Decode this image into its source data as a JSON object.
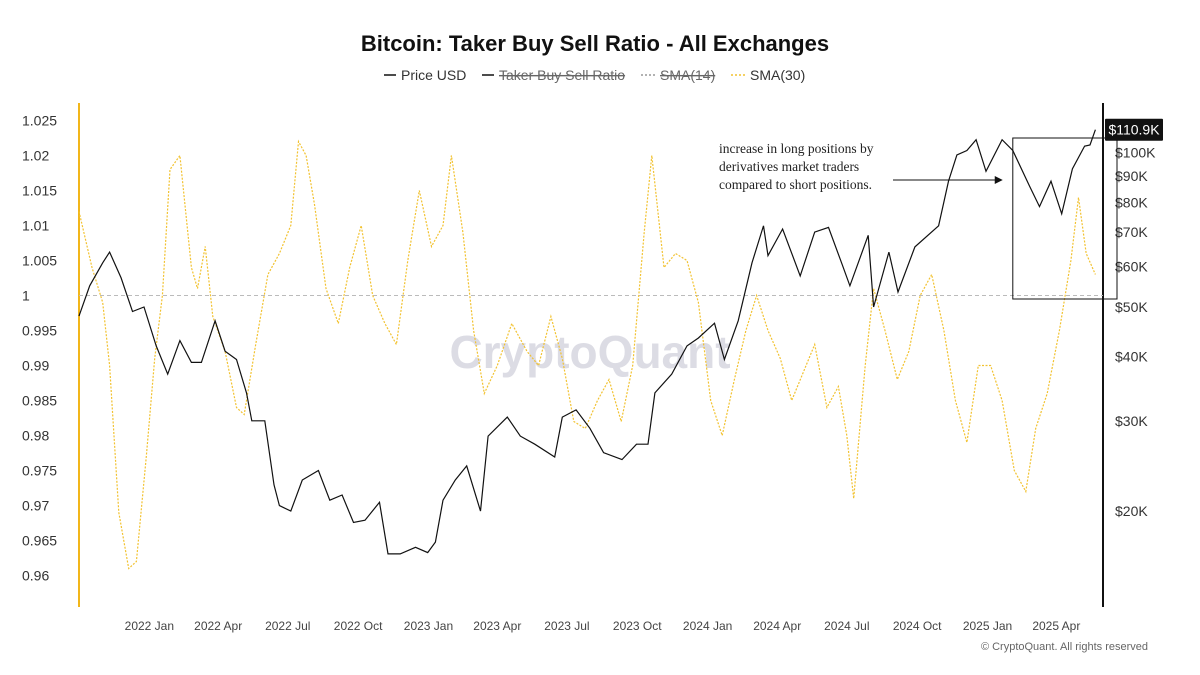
{
  "colors": {
    "price": "#111111",
    "sma30": "#f2c230",
    "left_axis": "#f2b61a",
    "right_axis": "#111111",
    "baseline": "#bbbbbb"
  },
  "watermark": "CryptoQuant",
  "copyright": "© CryptoQuant. All rights reserved",
  "chart_data": {
    "type": "line",
    "title": "Bitcoin: Taker Buy Sell Ratio - All Exchanges",
    "legend": [
      {
        "label": "Price USD",
        "active": true,
        "style": "solid-black"
      },
      {
        "label": "Taker Buy Sell Ratio",
        "active": false,
        "style": "solid-black"
      },
      {
        "label": "SMA(14)",
        "active": false,
        "style": "dotted-gray"
      },
      {
        "label": "SMA(30)",
        "active": true,
        "style": "dotted-yellow"
      }
    ],
    "x_axis": {
      "range": [
        "2021-10-01",
        "2025-06-01"
      ],
      "ticks": [
        {
          "label": "2022 Jan",
          "date": "2022-01-01"
        },
        {
          "label": "2022 Apr",
          "date": "2022-04-01"
        },
        {
          "label": "2022 Jul",
          "date": "2022-07-01"
        },
        {
          "label": "2022 Oct",
          "date": "2022-10-01"
        },
        {
          "label": "2023 Jan",
          "date": "2023-01-01"
        },
        {
          "label": "2023 Apr",
          "date": "2023-04-01"
        },
        {
          "label": "2023 Jul",
          "date": "2023-07-01"
        },
        {
          "label": "2023 Oct",
          "date": "2023-10-01"
        },
        {
          "label": "2024 Jan",
          "date": "2024-01-01"
        },
        {
          "label": "2024 Apr",
          "date": "2024-04-01"
        },
        {
          "label": "2024 Jul",
          "date": "2024-07-01"
        },
        {
          "label": "2024 Oct",
          "date": "2024-10-01"
        },
        {
          "label": "2025 Jan",
          "date": "2025-01-01"
        },
        {
          "label": "2025 Apr",
          "date": "2025-04-01"
        }
      ]
    },
    "y_left": {
      "range": [
        0.9555,
        1.0275
      ],
      "ticks": [
        "1.025",
        "1.02",
        "1.015",
        "1.01",
        "1.005",
        "1",
        "0.995",
        "0.99",
        "0.985",
        "0.98",
        "0.975",
        "0.97",
        "0.965",
        "0.96"
      ],
      "baseline": 1
    },
    "y_right": {
      "scale": "log",
      "range": [
        13000,
        125000
      ],
      "ticks": [
        {
          "label": "$100K",
          "value": 100000
        },
        {
          "label": "$90K",
          "value": 90000
        },
        {
          "label": "$80K",
          "value": 80000
        },
        {
          "label": "$70K",
          "value": 70000
        },
        {
          "label": "$60K",
          "value": 60000
        },
        {
          "label": "$50K",
          "value": 50000
        },
        {
          "label": "$40K",
          "value": 40000
        },
        {
          "label": "$30K",
          "value": 30000
        },
        {
          "label": "$20K",
          "value": 20000
        }
      ],
      "current_price_label": "$110.9K",
      "current_price_value": 110900
    },
    "series": [
      {
        "name": "Price USD",
        "axis": "right",
        "points": [
          [
            "2021-10-01",
            48000
          ],
          [
            "2021-10-15",
            55000
          ],
          [
            "2021-11-01",
            61000
          ],
          [
            "2021-11-10",
            64000
          ],
          [
            "2021-11-25",
            57000
          ],
          [
            "2021-12-10",
            49000
          ],
          [
            "2021-12-25",
            50000
          ],
          [
            "2022-01-10",
            42000
          ],
          [
            "2022-01-25",
            37000
          ],
          [
            "2022-02-10",
            43000
          ],
          [
            "2022-02-25",
            39000
          ],
          [
            "2022-03-10",
            39000
          ],
          [
            "2022-03-28",
            47000
          ],
          [
            "2022-04-10",
            41000
          ],
          [
            "2022-04-25",
            39500
          ],
          [
            "2022-05-08",
            34000
          ],
          [
            "2022-05-15",
            30000
          ],
          [
            "2022-06-01",
            30000
          ],
          [
            "2022-06-13",
            22500
          ],
          [
            "2022-06-20",
            20500
          ],
          [
            "2022-07-05",
            20000
          ],
          [
            "2022-07-20",
            23000
          ],
          [
            "2022-08-10",
            24000
          ],
          [
            "2022-08-25",
            21000
          ],
          [
            "2022-09-10",
            21500
          ],
          [
            "2022-09-25",
            19000
          ],
          [
            "2022-10-10",
            19200
          ],
          [
            "2022-10-29",
            20800
          ],
          [
            "2022-11-09",
            16500
          ],
          [
            "2022-11-25",
            16500
          ],
          [
            "2022-12-15",
            17000
          ],
          [
            "2022-12-31",
            16600
          ],
          [
            "2023-01-10",
            17400
          ],
          [
            "2023-01-20",
            21000
          ],
          [
            "2023-02-05",
            23000
          ],
          [
            "2023-02-20",
            24500
          ],
          [
            "2023-03-10",
            20000
          ],
          [
            "2023-03-20",
            28000
          ],
          [
            "2023-04-14",
            30500
          ],
          [
            "2023-05-01",
            28000
          ],
          [
            "2023-05-20",
            27000
          ],
          [
            "2023-06-15",
            25500
          ],
          [
            "2023-06-25",
            30500
          ],
          [
            "2023-07-13",
            31500
          ],
          [
            "2023-07-31",
            29000
          ],
          [
            "2023-08-18",
            26000
          ],
          [
            "2023-09-11",
            25200
          ],
          [
            "2023-09-30",
            27000
          ],
          [
            "2023-10-15",
            27000
          ],
          [
            "2023-10-24",
            34000
          ],
          [
            "2023-11-15",
            37000
          ],
          [
            "2023-12-05",
            42000
          ],
          [
            "2023-12-20",
            43500
          ],
          [
            "2024-01-10",
            46500
          ],
          [
            "2024-01-23",
            39500
          ],
          [
            "2024-02-10",
            47000
          ],
          [
            "2024-02-28",
            61000
          ],
          [
            "2024-03-14",
            72000
          ],
          [
            "2024-03-20",
            63000
          ],
          [
            "2024-04-08",
            71000
          ],
          [
            "2024-05-01",
            57500
          ],
          [
            "2024-05-20",
            70000
          ],
          [
            "2024-06-07",
            71500
          ],
          [
            "2024-06-25",
            60500
          ],
          [
            "2024-07-05",
            55000
          ],
          [
            "2024-07-29",
            69000
          ],
          [
            "2024-08-05",
            50000
          ],
          [
            "2024-08-25",
            64000
          ],
          [
            "2024-09-06",
            53500
          ],
          [
            "2024-09-28",
            65500
          ],
          [
            "2024-10-29",
            72000
          ],
          [
            "2024-11-11",
            88000
          ],
          [
            "2024-11-22",
            99000
          ],
          [
            "2024-12-05",
            101000
          ],
          [
            "2024-12-17",
            106000
          ],
          [
            "2024-12-30",
            92000
          ],
          [
            "2025-01-20",
            106000
          ],
          [
            "2025-02-03",
            101000
          ],
          [
            "2025-02-25",
            86000
          ],
          [
            "2025-03-10",
            78500
          ],
          [
            "2025-03-25",
            88000
          ],
          [
            "2025-04-08",
            76000
          ],
          [
            "2025-04-22",
            93000
          ],
          [
            "2025-05-08",
            103000
          ],
          [
            "2025-05-15",
            103500
          ],
          [
            "2025-05-22",
            110900
          ]
        ]
      },
      {
        "name": "SMA(30)",
        "axis": "left",
        "points": [
          [
            "2021-10-01",
            1.012
          ],
          [
            "2021-10-18",
            1.004
          ],
          [
            "2021-11-01",
            0.999
          ],
          [
            "2021-11-10",
            0.99
          ],
          [
            "2021-11-22",
            0.969
          ],
          [
            "2021-12-05",
            0.961
          ],
          [
            "2021-12-15",
            0.962
          ],
          [
            "2021-12-28",
            0.977
          ],
          [
            "2022-01-08",
            0.991
          ],
          [
            "2022-01-18",
            1.0
          ],
          [
            "2022-01-28",
            1.018
          ],
          [
            "2022-02-10",
            1.02
          ],
          [
            "2022-02-25",
            1.004
          ],
          [
            "2022-03-05",
            1.001
          ],
          [
            "2022-03-15",
            1.007
          ],
          [
            "2022-03-25",
            0.997
          ],
          [
            "2022-04-10",
            0.992
          ],
          [
            "2022-04-25",
            0.984
          ],
          [
            "2022-05-05",
            0.983
          ],
          [
            "2022-05-20",
            0.993
          ],
          [
            "2022-06-05",
            1.003
          ],
          [
            "2022-06-20",
            1.006
          ],
          [
            "2022-07-05",
            1.01
          ],
          [
            "2022-07-15",
            1.022
          ],
          [
            "2022-07-25",
            1.02
          ],
          [
            "2022-08-05",
            1.013
          ],
          [
            "2022-08-20",
            1.001
          ],
          [
            "2022-09-05",
            0.996
          ],
          [
            "2022-09-20",
            1.004
          ],
          [
            "2022-10-05",
            1.01
          ],
          [
            "2022-10-20",
            1.0
          ],
          [
            "2022-11-05",
            0.996
          ],
          [
            "2022-11-20",
            0.993
          ],
          [
            "2022-12-05",
            1.005
          ],
          [
            "2022-12-20",
            1.015
          ],
          [
            "2023-01-05",
            1.007
          ],
          [
            "2023-01-20",
            1.01
          ],
          [
            "2023-01-31",
            1.02
          ],
          [
            "2023-02-15",
            1.009
          ],
          [
            "2023-03-01",
            0.995
          ],
          [
            "2023-03-15",
            0.986
          ],
          [
            "2023-04-01",
            0.99
          ],
          [
            "2023-04-20",
            0.996
          ],
          [
            "2023-05-10",
            0.992
          ],
          [
            "2023-05-25",
            0.99
          ],
          [
            "2023-06-10",
            0.997
          ],
          [
            "2023-06-25",
            0.991
          ],
          [
            "2023-07-10",
            0.982
          ],
          [
            "2023-07-25",
            0.981
          ],
          [
            "2023-08-10",
            0.985
          ],
          [
            "2023-08-25",
            0.988
          ],
          [
            "2023-09-10",
            0.982
          ],
          [
            "2023-09-25",
            0.99
          ],
          [
            "2023-10-10",
            1.009
          ],
          [
            "2023-10-20",
            1.02
          ],
          [
            "2023-11-05",
            1.004
          ],
          [
            "2023-11-20",
            1.006
          ],
          [
            "2023-12-05",
            1.005
          ],
          [
            "2023-12-20",
            0.999
          ],
          [
            "2024-01-05",
            0.985
          ],
          [
            "2024-01-20",
            0.98
          ],
          [
            "2024-02-05",
            0.988
          ],
          [
            "2024-02-20",
            0.995
          ],
          [
            "2024-03-05",
            1.0
          ],
          [
            "2024-03-20",
            0.995
          ],
          [
            "2024-04-05",
            0.991
          ],
          [
            "2024-04-20",
            0.985
          ],
          [
            "2024-05-05",
            0.989
          ],
          [
            "2024-05-20",
            0.993
          ],
          [
            "2024-06-05",
            0.984
          ],
          [
            "2024-06-20",
            0.987
          ],
          [
            "2024-07-01",
            0.98
          ],
          [
            "2024-07-10",
            0.971
          ],
          [
            "2024-07-25",
            0.99
          ],
          [
            "2024-08-05",
            1.001
          ],
          [
            "2024-08-20",
            0.995
          ],
          [
            "2024-09-05",
            0.988
          ],
          [
            "2024-09-20",
            0.992
          ],
          [
            "2024-10-05",
            1.0
          ],
          [
            "2024-10-20",
            1.003
          ],
          [
            "2024-11-05",
            0.995
          ],
          [
            "2024-11-20",
            0.985
          ],
          [
            "2024-12-05",
            0.979
          ],
          [
            "2024-12-20",
            0.99
          ],
          [
            "2025-01-05",
            0.99
          ],
          [
            "2025-01-20",
            0.985
          ],
          [
            "2025-02-05",
            0.975
          ],
          [
            "2025-02-20",
            0.972
          ],
          [
            "2025-03-05",
            0.981
          ],
          [
            "2025-03-20",
            0.986
          ],
          [
            "2025-04-05",
            0.995
          ],
          [
            "2025-04-20",
            1.005
          ],
          [
            "2025-04-30",
            1.014
          ],
          [
            "2025-05-10",
            1.006
          ],
          [
            "2025-05-22",
            1.003
          ]
        ]
      }
    ],
    "annotation": {
      "lines": [
        "increase in long positions by",
        "derivatives market traders",
        "compared to short positions."
      ],
      "arrow_to_date": "2025-02-03",
      "box": {
        "x_range": [
          "2025-02-03",
          "2025-06-01"
        ],
        "y_range": [
          0.9995,
          1.0225
        ]
      }
    }
  }
}
